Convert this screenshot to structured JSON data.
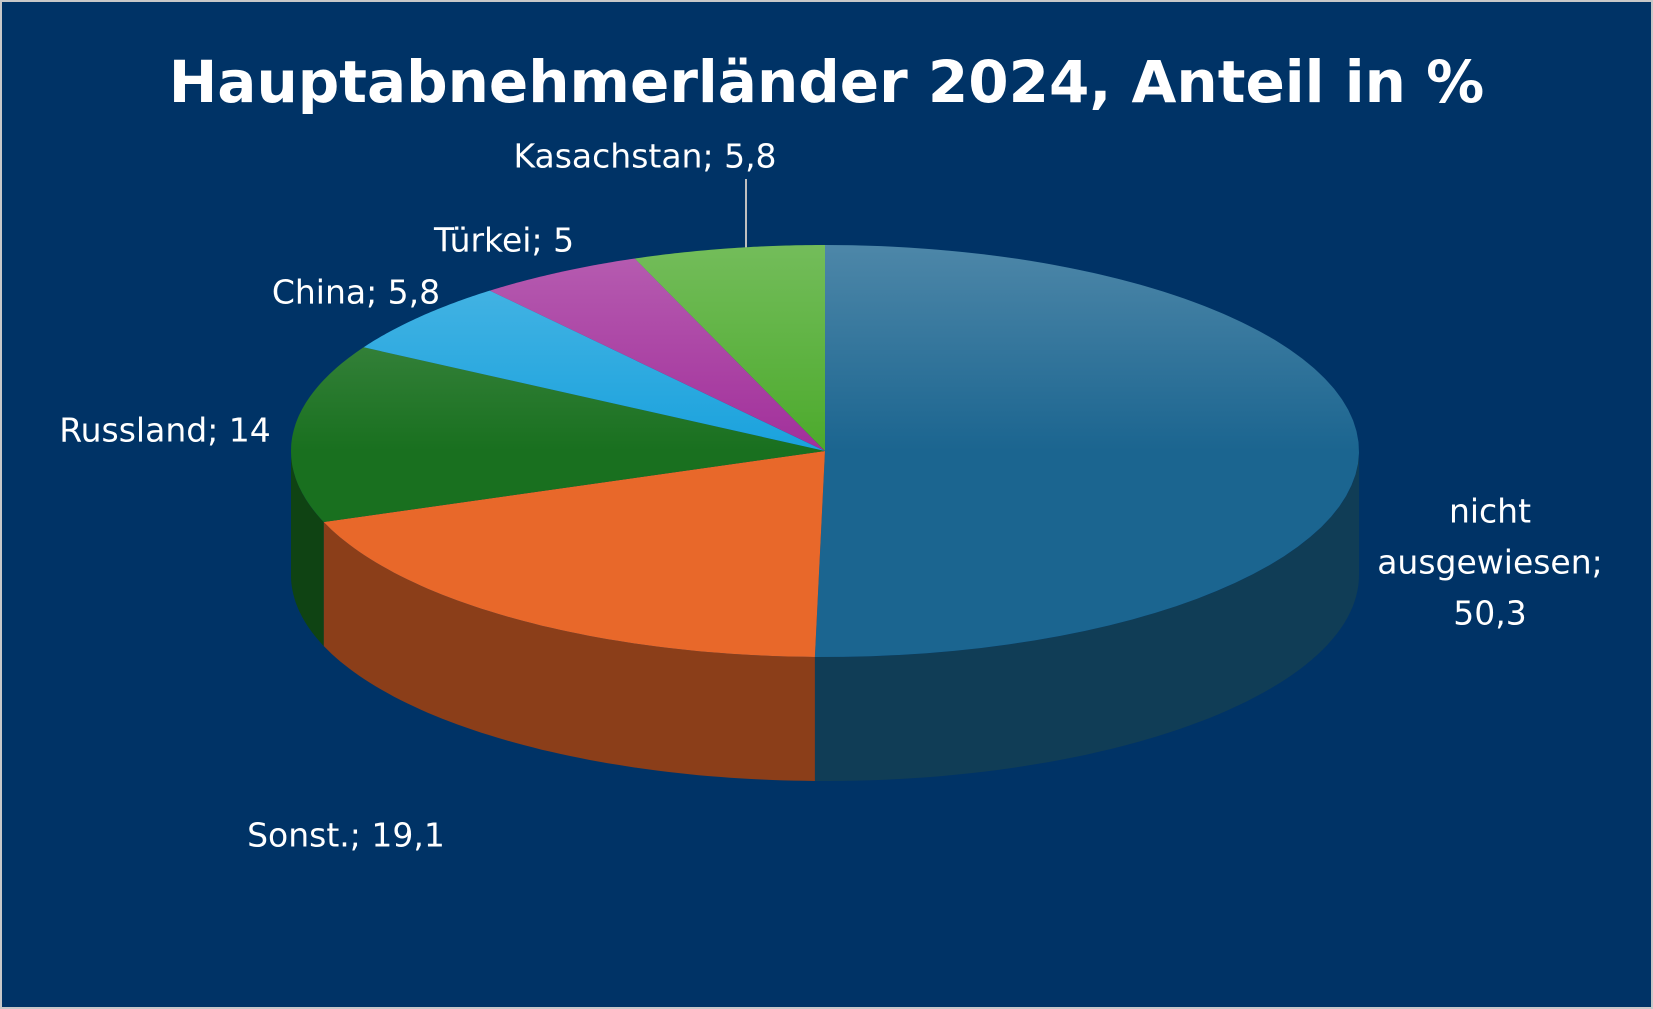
{
  "chart_data": {
    "type": "pie3d",
    "title": "Hauptabnehmerländer 2024, Anteil in %",
    "categories": [
      "nicht ausgewiesen",
      "Sonst.",
      "Russland",
      "China",
      "Türkei",
      "Kasachstan"
    ],
    "values": [
      50.3,
      19.1,
      14,
      5.8,
      5,
      5.8
    ],
    "value_labels": [
      "nicht ausgewiesen; 50,3",
      "Sonst.; 19,1",
      "Russland; 14",
      "China; 5,8",
      "Türkei; 5",
      "Kasachstan; 5,8"
    ],
    "colors": [
      "#1b6590",
      "#e8682a",
      "#19701f",
      "#1aa2dd",
      "#a2309b",
      "#4caa2c"
    ]
  }
}
